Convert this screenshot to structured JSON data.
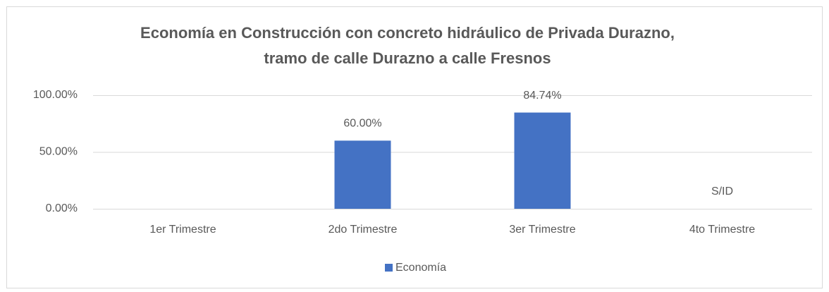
{
  "chart_data": {
    "type": "bar",
    "title": [
      "Economía en Construcción con concreto hidráulico de Privada Durazno,",
      "tramo de calle Durazno a calle Fresnos"
    ],
    "categories": [
      "1er Trimestre",
      "2do Trimestre",
      "3er Trimestre",
      "4to Trimestre"
    ],
    "series": [
      {
        "name": "Economía",
        "color": "#4472c4",
        "values": [
          null,
          60,
          84.74,
          null
        ],
        "value_labels": [
          null,
          "60.00%",
          "84.74%",
          "S/ID"
        ]
      }
    ],
    "ylim": [
      0,
      100
    ],
    "yticks": [
      {
        "value": 0,
        "label": "0.00%"
      },
      {
        "value": 50,
        "label": "50.00%"
      },
      {
        "value": 100,
        "label": "100.00%"
      }
    ],
    "grid": true,
    "legend": "bottom"
  }
}
